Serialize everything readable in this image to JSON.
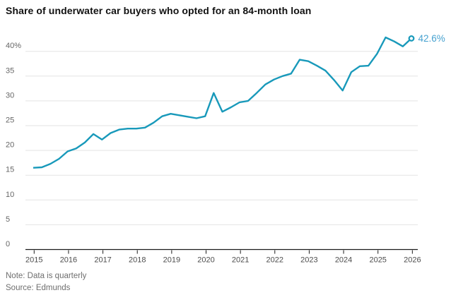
{
  "header": {
    "title": "Share of underwater car buyers who opted for an 84-month loan"
  },
  "footer": {
    "note": "Note: Data is quarterly",
    "source": "Source: Edmunds"
  },
  "chart_data": {
    "type": "line",
    "title": "Share of underwater car buyers who opted for an 84-month loan",
    "xlabel": "",
    "ylabel": "",
    "grid": "horizontal",
    "legend": "none",
    "x": [
      "2015 Q1",
      "2015 Q2",
      "2015 Q3",
      "2015 Q4",
      "2016 Q1",
      "2016 Q2",
      "2016 Q3",
      "2016 Q4",
      "2017 Q1",
      "2017 Q2",
      "2017 Q3",
      "2017 Q4",
      "2018 Q1",
      "2018 Q2",
      "2018 Q3",
      "2018 Q4",
      "2019 Q1",
      "2019 Q2",
      "2019 Q3",
      "2019 Q4",
      "2020 Q1",
      "2020 Q2",
      "2020 Q3",
      "2020 Q4",
      "2021 Q1",
      "2021 Q2",
      "2021 Q3",
      "2021 Q4",
      "2022 Q1",
      "2022 Q2",
      "2022 Q3",
      "2022 Q4",
      "2023 Q1",
      "2023 Q2",
      "2023 Q3",
      "2023 Q4",
      "2024 Q1",
      "2024 Q2",
      "2024 Q3",
      "2024 Q4",
      "2025 Q1",
      "2025 Q2",
      "2025 Q3",
      "2025 Q4",
      "2026 Q1"
    ],
    "values": [
      16.5,
      16.6,
      17.3,
      18.3,
      19.8,
      20.4,
      21.6,
      23.3,
      22.2,
      23.5,
      24.2,
      24.4,
      24.4,
      24.6,
      25.6,
      26.9,
      27.4,
      27.1,
      26.8,
      26.5,
      26.9,
      31.6,
      27.8,
      28.7,
      29.7,
      30.0,
      31.6,
      33.3,
      34.3,
      35.0,
      35.5,
      38.3,
      38.0,
      37.1,
      36.1,
      34.2,
      32.1,
      35.8,
      37.0,
      37.1,
      39.5,
      42.8,
      42.0,
      41.0,
      42.6
    ],
    "x_tick_labels": [
      "2015",
      "2016",
      "2017",
      "2018",
      "2019",
      "2020",
      "2021",
      "2022",
      "2023",
      "2024",
      "2025",
      "2026"
    ],
    "y_tick_labels": [
      "40%",
      "35",
      "30",
      "25",
      "20",
      "15",
      "10",
      "5",
      "0"
    ],
    "y_tick_values": [
      40,
      35,
      30,
      25,
      20,
      15,
      10,
      5,
      0
    ],
    "ylim": [
      0,
      44
    ],
    "end_label": "42.6%",
    "end_marker": "open-circle",
    "colors": {
      "line": "#1899ba",
      "end_label": "#47a2d0",
      "grid": "#e3e3e3",
      "axis": "#1a1a1a",
      "x_tick_label": "#4d4d4d",
      "y_tick_label": "#666666",
      "title": "#111111",
      "note": "#6e6e6e"
    }
  }
}
